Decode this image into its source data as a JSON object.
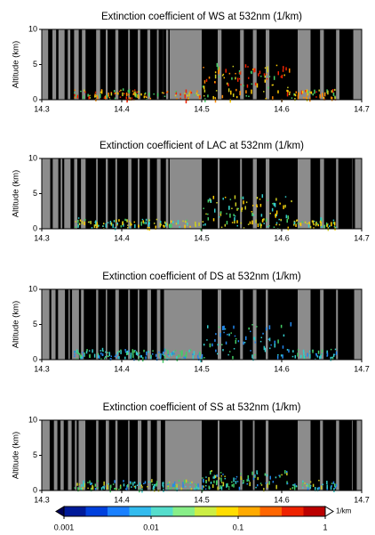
{
  "chart_data": [
    {
      "type": "heatmap",
      "title": "Extinction coefficient of WS at 532nm (1/km)",
      "ylabel": "Altitude (km)",
      "xlim": [
        14.3,
        14.7
      ],
      "xticks": [
        14.3,
        14.4,
        14.5,
        14.6,
        14.7
      ],
      "ylim": [
        0,
        10
      ],
      "yticks": [
        0,
        5,
        10
      ]
    },
    {
      "type": "heatmap",
      "title": "Extinction coefficient of LAC at 532nm (1/km)",
      "ylabel": "Altitude (km)",
      "xlim": [
        14.3,
        14.7
      ],
      "xticks": [
        14.3,
        14.4,
        14.5,
        14.6,
        14.7
      ],
      "ylim": [
        0,
        10
      ],
      "yticks": [
        0,
        5,
        10
      ]
    },
    {
      "type": "heatmap",
      "title": "Extinction coefficient of DS at 532nm (1/km)",
      "ylabel": "Altitude (km)",
      "xlim": [
        14.3,
        14.7
      ],
      "xticks": [
        14.3,
        14.4,
        14.5,
        14.6,
        14.7
      ],
      "ylim": [
        0,
        10
      ],
      "yticks": [
        0,
        5,
        10
      ]
    },
    {
      "type": "heatmap",
      "title": "Extinction coefficient of SS at 532nm (1/km)",
      "ylabel": "Altitude (km)",
      "xlim": [
        14.3,
        14.7
      ],
      "xticks": [
        14.3,
        14.4,
        14.5,
        14.6,
        14.7
      ],
      "ylim": [
        0,
        10
      ],
      "yticks": [
        0,
        5,
        10
      ]
    }
  ],
  "colorbar": {
    "lim": [
      0.001,
      1
    ],
    "ticks": [
      0.001,
      0.01,
      0.1,
      1
    ],
    "log": true,
    "label": "1/km"
  }
}
